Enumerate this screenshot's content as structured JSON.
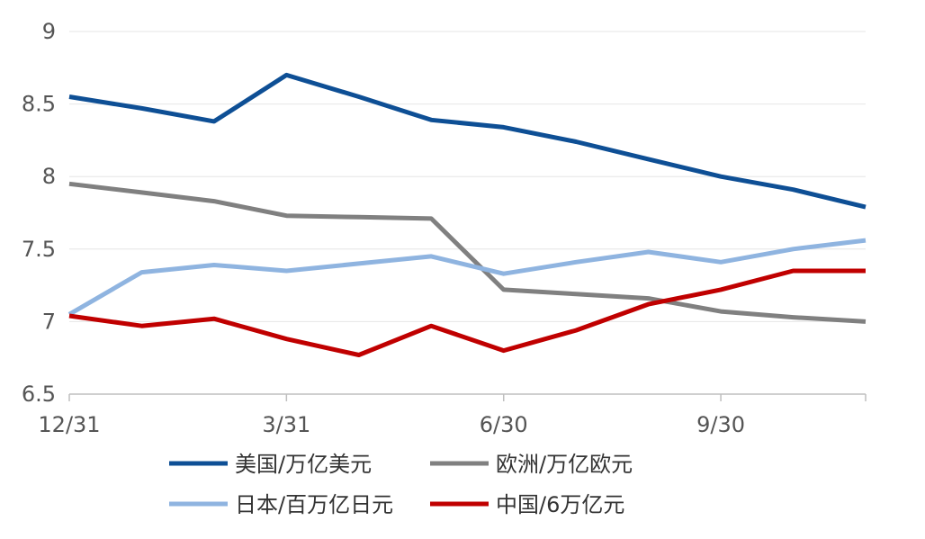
{
  "chart_data": {
    "type": "line",
    "title": "",
    "xlabel": "",
    "ylabel": "",
    "ylim": [
      6.5,
      9
    ],
    "yticks": [
      "9",
      "8.5",
      "8",
      "7.5",
      "7",
      "6.5"
    ],
    "x_tick_labels": [
      {
        "x": 0,
        "label": "12/31"
      },
      {
        "x": 3,
        "label": "3/31"
      },
      {
        "x": 6,
        "label": "6/30"
      },
      {
        "x": 9,
        "label": "9/30"
      }
    ],
    "x": [
      0,
      1,
      2,
      3,
      4,
      5,
      6,
      7,
      8,
      9,
      10,
      11
    ],
    "grid": true,
    "legend_position": "bottom",
    "series": [
      {
        "name": "美国/万亿美元",
        "color": "#0e4f95",
        "values": [
          8.55,
          8.47,
          8.38,
          8.7,
          8.55,
          8.39,
          8.34,
          8.24,
          8.12,
          8.0,
          7.91,
          7.79
        ]
      },
      {
        "name": "欧洲/万亿欧元",
        "color": "#808080",
        "values": [
          7.95,
          7.89,
          7.83,
          7.73,
          7.72,
          7.71,
          7.22,
          7.19,
          7.16,
          7.07,
          7.03,
          7.0
        ]
      },
      {
        "name": "日本/百万亿日元",
        "color": "#8fb4e0",
        "values": [
          7.05,
          7.34,
          7.39,
          7.35,
          7.4,
          7.45,
          7.33,
          7.41,
          7.48,
          7.41,
          7.5,
          7.56
        ]
      },
      {
        "name": "中国/6万亿元",
        "color": "#c00000",
        "values": [
          7.04,
          6.97,
          7.02,
          6.88,
          6.77,
          6.97,
          6.8,
          6.94,
          7.12,
          7.22,
          7.35,
          7.35
        ]
      }
    ]
  }
}
